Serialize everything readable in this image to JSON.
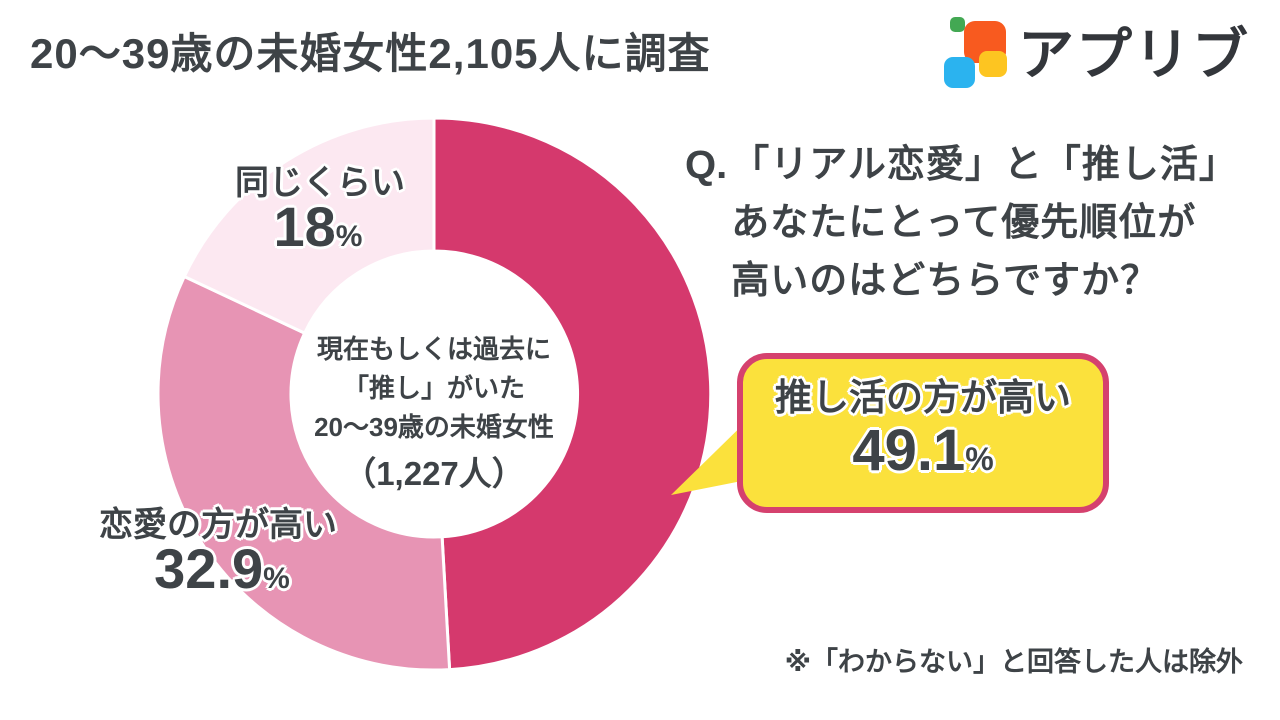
{
  "header": {
    "title": "20〜39歳の未婚女性2,105人に調査",
    "logo_text": "アプリブ"
  },
  "logo_colors": {
    "green": "#43A853",
    "orange": "#F85A1F",
    "blue": "#2BB3EF",
    "yellow": "#FDC521"
  },
  "question": {
    "prefix": "Q.",
    "lines": {
      "l1": "「リアル恋愛」と「推し活」",
      "l2": "あなたにとって優先順位が",
      "l3": "高いのはどちらですか？"
    }
  },
  "callout": {
    "label": "推し活の方が高い",
    "value": "49.1",
    "unit": "%"
  },
  "donut_center": {
    "line1": "現在もしくは過去に",
    "line2": "「推し」がいた",
    "line3": "20〜39歳の未婚女性",
    "line4": "（1,227人）"
  },
  "labels": {
    "same": {
      "label": "同じくらい",
      "value": "18",
      "unit": "%"
    },
    "love": {
      "label": "恋愛の方が高い",
      "value": "32.9",
      "unit": "%"
    }
  },
  "footnote": "※「わからない」と回答した人は除外",
  "colors": {
    "text": "#3E4347",
    "highlight_yellow": "#FBE13C",
    "callout_border": "#D5416E"
  },
  "chart_data": {
    "type": "pie",
    "title": "20〜39歳の未婚女性2,105人に調査",
    "question": "Q.「リアル恋愛」と「推し活」あなたにとって優先順位が高いのはどちらですか？",
    "categories": [
      "推し活の方が高い",
      "恋愛の方が高い",
      "同じくらい"
    ],
    "values": [
      49.1,
      32.9,
      18
    ],
    "colors": [
      "#D5396D",
      "#E794B4",
      "#FCE8F1"
    ],
    "donut": true,
    "start_angle_deg": 0,
    "direction": "clockwise",
    "center_note": "現在もしくは過去に「推し」がいた20〜39歳の未婚女性（1,227人）",
    "footnote": "※「わからない」と回答した人は除外"
  }
}
